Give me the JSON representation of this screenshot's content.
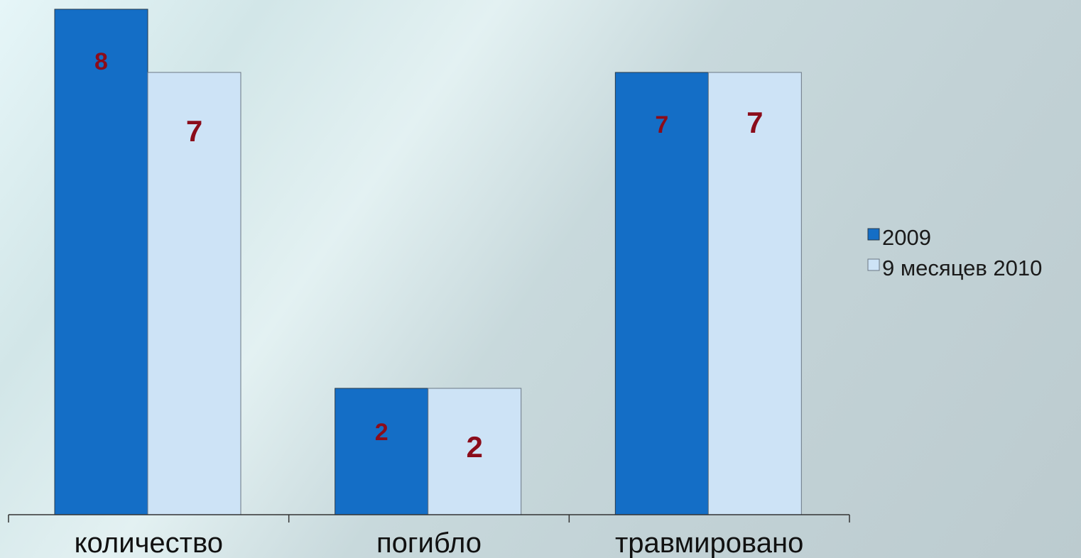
{
  "chart_data": {
    "type": "bar",
    "categories": [
      "количество",
      "погибло",
      "травмировано"
    ],
    "series": [
      {
        "name": "2009",
        "values": [
          8,
          2,
          7
        ],
        "color": "#146ec6"
      },
      {
        "name": "9 месяцев 2010",
        "values": [
          7,
          2,
          7
        ],
        "color": "#cde3f6"
      }
    ],
    "data_labels": [
      [
        "8",
        "2",
        "7"
      ],
      [
        "7",
        "2",
        "7"
      ]
    ],
    "label_color": "#8b0c1a",
    "legend_position": "right",
    "ylim": [
      0,
      8
    ],
    "grid": false,
    "title": "",
    "xlabel": "",
    "ylabel": ""
  }
}
